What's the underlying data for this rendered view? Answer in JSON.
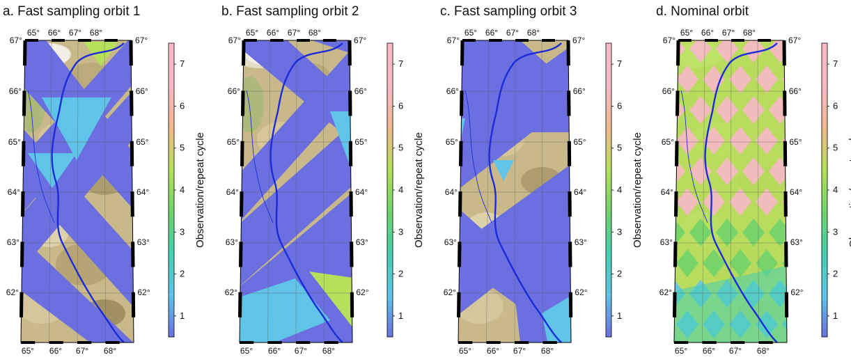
{
  "panels": [
    {
      "title": "a. Fast sampling orbit 1",
      "variant": "fast1"
    },
    {
      "title": "b. Fast sampling orbit 2",
      "variant": "fast2"
    },
    {
      "title": "c. Fast sampling orbit 3",
      "variant": "fast3"
    },
    {
      "title": "d. Nominal orbit",
      "variant": "nominal"
    }
  ],
  "map": {
    "top_lon_labels": [
      "65°",
      "66°",
      "67°",
      "68°"
    ],
    "bottom_lon_labels": [
      "65°",
      "66°",
      "67°",
      "68°"
    ],
    "lat_labels": [
      "67°",
      "66°",
      "65°",
      "64°",
      "63°",
      "62°"
    ]
  },
  "colorbar": {
    "title": "Observation/repeat cycle",
    "ticks": [
      "1",
      "2",
      "3",
      "4",
      "5",
      "6",
      "7"
    ],
    "colors": [
      "#6b6fe0",
      "#5fc4e8",
      "#45d0b0",
      "#6fd36a",
      "#b7e05a",
      "#f2b890",
      "#f8b8c8"
    ]
  }
}
